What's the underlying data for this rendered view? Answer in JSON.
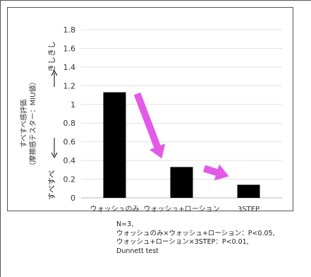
{
  "chart_data": {
    "type": "bar",
    "categories": [
      "ウォッシュのみ",
      "ウォッシュ+ローション",
      "3STEP"
    ],
    "values": [
      1.13,
      0.33,
      0.14
    ],
    "ylim": [
      0,
      1.8
    ],
    "yticks": [
      "0",
      "0.2",
      "0.4",
      "0.6",
      "0.8",
      "1",
      "1.2",
      "1.4",
      "1.6",
      "1.8"
    ],
    "ylabel_lines": [
      "すべすべ感評価",
      "（摩擦感テスター：MIU値）"
    ],
    "axis_note_top": "きしきし",
    "axis_note_bottom": "すべすべ",
    "bar_color": "#000000",
    "arrow_color": "#e35ae8",
    "grid": true,
    "legend": "none"
  },
  "notes": [
    "N=3,",
    "ウォッシュのみ×ウォッシュ+ローション：P<0.05,",
    "ウォッシュ+ローション×3STEP：P<0.01,",
    "Dunnett test"
  ]
}
